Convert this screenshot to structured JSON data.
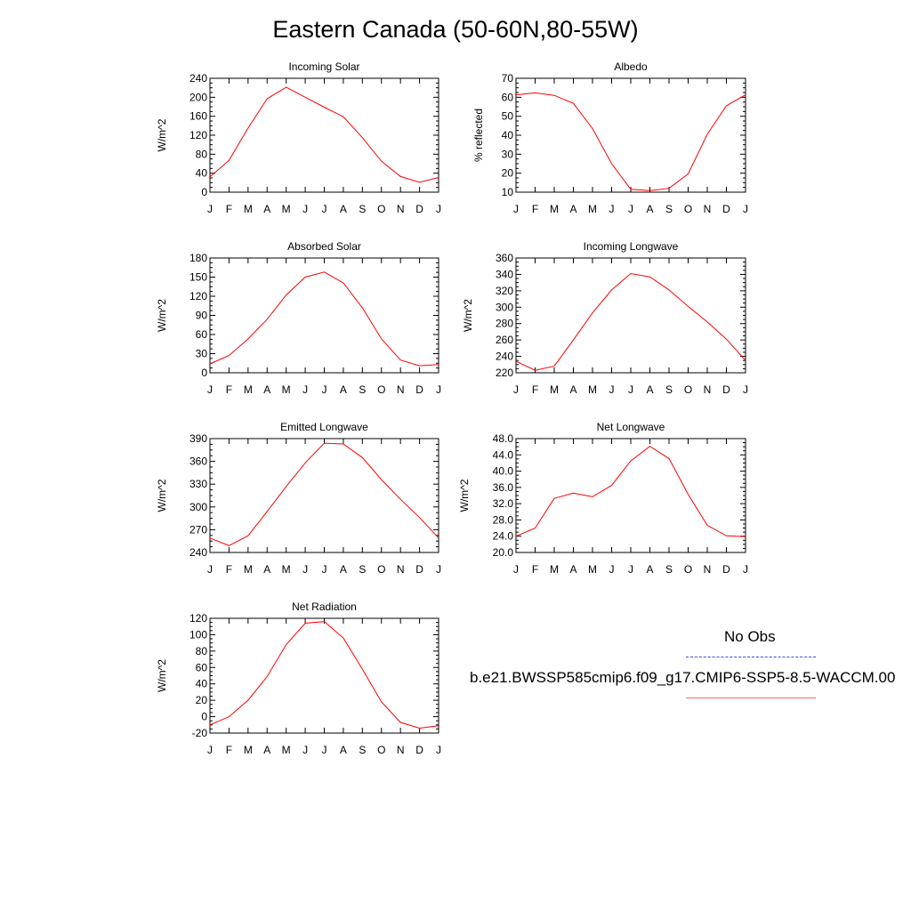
{
  "page": {
    "title": "Eastern Canada (50-60N,80-55W)"
  },
  "legend": {
    "obs_label": "No Obs",
    "obs_color": "#4444ff",
    "model_label": "b.e21.BWSSP585cmip6.f09_g17.CMIP6-SSP5-8.5-WACCM.00",
    "model_color": "#ff0000"
  },
  "chart_data": [
    {
      "type": "line",
      "title": "Incoming Solar",
      "ylabel": "W/m^2",
      "x": [
        "J",
        "F",
        "M",
        "A",
        "M",
        "J",
        "J",
        "A",
        "S",
        "O",
        "N",
        "D",
        "J"
      ],
      "ylim": [
        0,
        240
      ],
      "yticks": [
        "0",
        "40",
        "80",
        "120",
        "160",
        "200",
        "240"
      ],
      "series": [
        {
          "values": [
            32,
            67,
            135,
            197,
            221,
            200,
            179,
            159,
            115,
            65,
            33,
            21,
            31
          ],
          "color": "#ff0000"
        }
      ]
    },
    {
      "type": "line",
      "title": "Albedo",
      "ylabel": "% reflected",
      "x": [
        "J",
        "F",
        "M",
        "A",
        "M",
        "J",
        "J",
        "A",
        "S",
        "O",
        "N",
        "D",
        "J"
      ],
      "ylim": [
        10,
        70
      ],
      "yticks": [
        "10",
        "20",
        "30",
        "40",
        "50",
        "60",
        "70"
      ],
      "series": [
        {
          "values": [
            61.3,
            62.3,
            61,
            56.8,
            43.5,
            25,
            11.5,
            10.8,
            12,
            19.6,
            40.5,
            55.5,
            61.3
          ],
          "color": "#ff0000"
        }
      ]
    },
    {
      "type": "line",
      "title": "Absorbed Solar",
      "ylabel": "W/m^2",
      "x": [
        "J",
        "F",
        "M",
        "A",
        "M",
        "J",
        "J",
        "A",
        "S",
        "O",
        "N",
        "D",
        "J"
      ],
      "ylim": [
        0,
        180
      ],
      "yticks": [
        "0",
        "30",
        "60",
        "90",
        "120",
        "150",
        "180"
      ],
      "series": [
        {
          "values": [
            14,
            27,
            53,
            84,
            122,
            150,
            158,
            141,
            102,
            53,
            20,
            11,
            13
          ],
          "color": "#ff0000"
        }
      ]
    },
    {
      "type": "line",
      "title": "Incoming Longwave",
      "ylabel": "W/m^2",
      "x": [
        "J",
        "F",
        "M",
        "A",
        "M",
        "J",
        "J",
        "A",
        "S",
        "O",
        "N",
        "D",
        "J"
      ],
      "ylim": [
        220,
        360
      ],
      "yticks": [
        "220",
        "240",
        "260",
        "280",
        "300",
        "320",
        "340",
        "360"
      ],
      "series": [
        {
          "values": [
            234,
            223,
            228,
            260,
            293,
            321,
            341,
            337,
            321,
            301,
            282,
            261,
            235
          ],
          "color": "#ff0000"
        }
      ]
    },
    {
      "type": "line",
      "title": "Emitted Longwave",
      "ylabel": "W/m^2",
      "x": [
        "J",
        "F",
        "M",
        "A",
        "M",
        "J",
        "J",
        "A",
        "S",
        "O",
        "N",
        "D",
        "J"
      ],
      "ylim": [
        240,
        390
      ],
      "yticks": [
        "240",
        "270",
        "300",
        "330",
        "360",
        "390"
      ],
      "series": [
        {
          "values": [
            259,
            249,
            262,
            294,
            327,
            358,
            384,
            383,
            365,
            336,
            310,
            286,
            259
          ],
          "color": "#ff0000"
        }
      ]
    },
    {
      "type": "line",
      "title": "Net Longwave",
      "ylabel": "W/m^2",
      "x": [
        "J",
        "F",
        "M",
        "A",
        "M",
        "J",
        "J",
        "A",
        "S",
        "O",
        "N",
        "D",
        "J"
      ],
      "ylim": [
        20,
        48
      ],
      "yticks": [
        "20.0",
        "24.0",
        "28.0",
        "32.0",
        "36.0",
        "40.0",
        "44.0",
        "48.0"
      ],
      "series": [
        {
          "values": [
            24,
            26,
            33.3,
            34.6,
            33.7,
            36.5,
            42.5,
            46.1,
            43.1,
            34.3,
            26.7,
            24.1,
            23.9
          ],
          "color": "#ff0000"
        }
      ]
    },
    {
      "type": "line",
      "title": "Net Radiation",
      "ylabel": "W/m^2",
      "x": [
        "J",
        "F",
        "M",
        "A",
        "M",
        "J",
        "J",
        "A",
        "S",
        "O",
        "N",
        "D",
        "J"
      ],
      "ylim": [
        -20,
        120
      ],
      "yticks": [
        "-20",
        "0",
        "20",
        "40",
        "60",
        "80",
        "100",
        "120"
      ],
      "series": [
        {
          "values": [
            -10,
            0,
            20,
            49,
            88,
            114,
            116,
            96,
            58,
            18,
            -7,
            -14,
            -11
          ],
          "color": "#ff0000"
        }
      ]
    }
  ]
}
